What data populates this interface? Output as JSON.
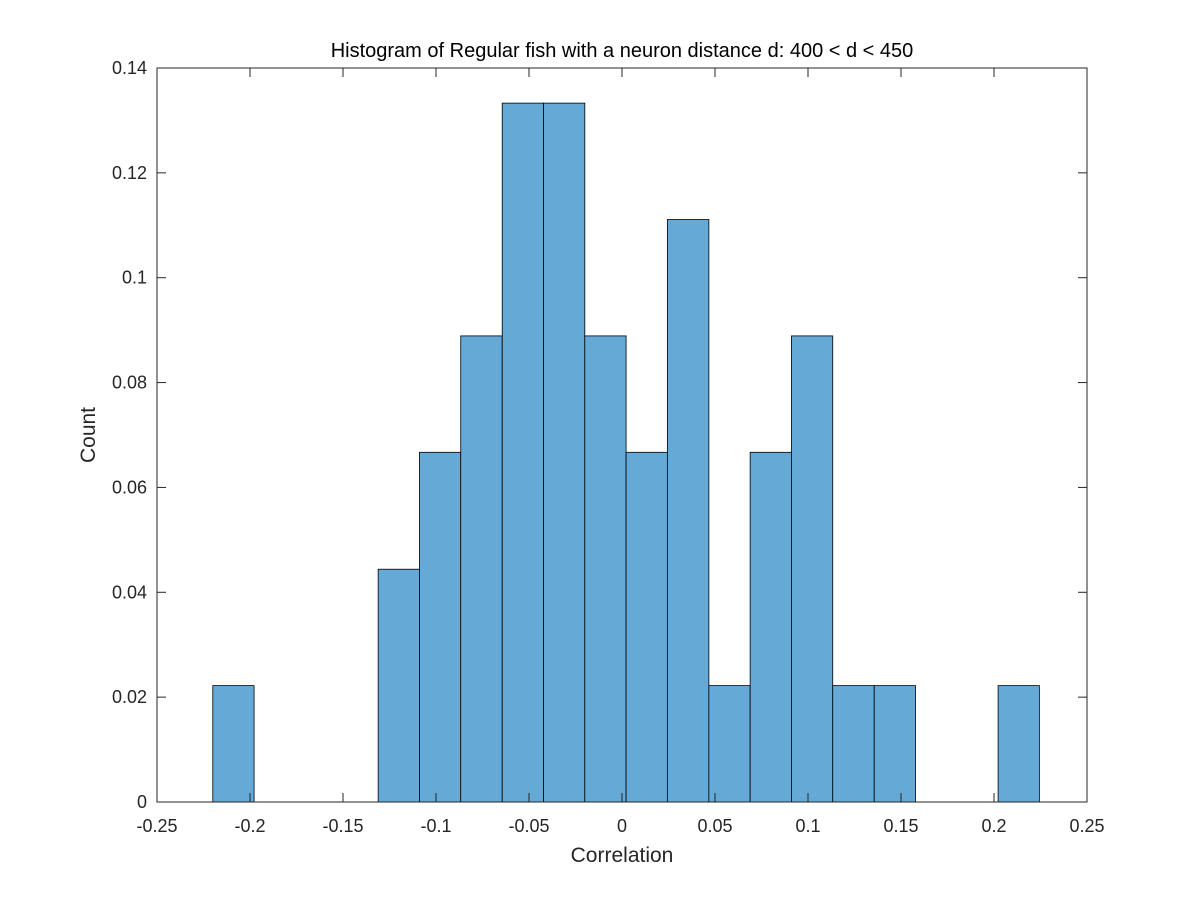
{
  "chart_data": {
    "type": "bar",
    "title": "Histogram of Regular fish with a neuron distance d: 400 < d < 450",
    "xlabel": "Correlation",
    "ylabel": "Count",
    "xlim": [
      -0.25,
      0.25
    ],
    "ylim": [
      0,
      0.14
    ],
    "xticks": [
      -0.25,
      -0.2,
      -0.15,
      -0.1,
      -0.05,
      0,
      0.05,
      0.1,
      0.15,
      0.2,
      0.25
    ],
    "xtick_labels": [
      "-0.25",
      "-0.2",
      "-0.15",
      "-0.1",
      "-0.05",
      "0",
      "0.05",
      "0.1",
      "0.15",
      "0.2",
      "0.25"
    ],
    "yticks": [
      0,
      0.02,
      0.04,
      0.06,
      0.08,
      0.1,
      0.12,
      0.14
    ],
    "ytick_labels": [
      "0",
      "0.02",
      "0.04",
      "0.06",
      "0.08",
      "0.1",
      "0.12",
      "0.14"
    ],
    "bin_edges": [
      -0.22,
      -0.1978,
      -0.1756,
      -0.1533,
      -0.1311,
      -0.1089,
      -0.0867,
      -0.0644,
      -0.0422,
      -0.02,
      0.0022,
      0.0244,
      0.0467,
      0.0689,
      0.0911,
      0.1133,
      0.1356,
      0.1578,
      0.18,
      0.2022,
      0.2244
    ],
    "values": [
      0.0222,
      0,
      0,
      0,
      0.0444,
      0.0667,
      0.0889,
      0.1333,
      0.1333,
      0.0889,
      0.0667,
      0.1111,
      0.0222,
      0.0667,
      0.0889,
      0.0222,
      0.0222,
      0,
      0,
      0.0222
    ],
    "bar_color": "#65a9d7",
    "edge_color": "#000000",
    "grid": false,
    "legend": "none"
  }
}
